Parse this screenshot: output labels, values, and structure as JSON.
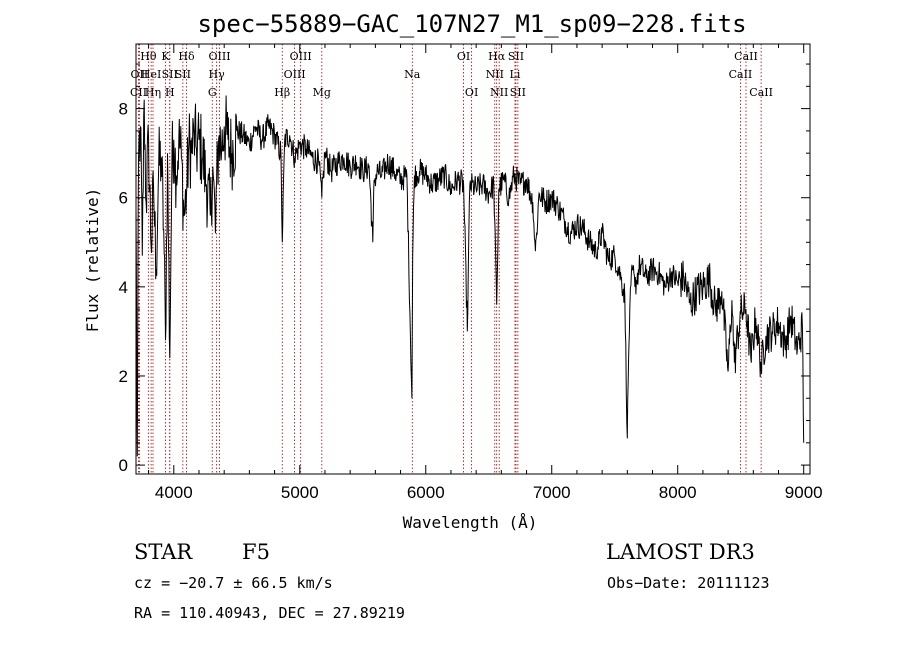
{
  "chart_data": {
    "type": "line",
    "title": "spec−55889−GAC_107N27_M1_sp09−228.fits",
    "xlabel": "Wavelength (Å)",
    "ylabel": "Flux (relative)",
    "xlim": [
      3700,
      9050
    ],
    "ylim": [
      -0.2,
      9.45
    ],
    "xticks": [
      4000,
      5000,
      6000,
      7000,
      8000,
      9000
    ],
    "yticks": [
      0,
      2,
      4,
      6,
      8
    ],
    "series": [
      {
        "name": "flux",
        "x": [
          3700,
          3710,
          3720,
          3735,
          3750,
          3765,
          3780,
          3800,
          3820,
          3840,
          3860,
          3880,
          3900,
          3920,
          3934,
          3950,
          3968,
          3985,
          4000,
          4020,
          4040,
          4060,
          4080,
          4101,
          4120,
          4140,
          4160,
          4180,
          4200,
          4230,
          4260,
          4290,
          4310,
          4330,
          4340,
          4360,
          4380,
          4400,
          4430,
          4460,
          4500,
          4550,
          4600,
          4650,
          4700,
          4750,
          4800,
          4850,
          4861,
          4880,
          4920,
          4960,
          5000,
          5050,
          5100,
          5150,
          5175,
          5200,
          5250,
          5300,
          5350,
          5400,
          5450,
          5500,
          5550,
          5580,
          5590,
          5620,
          5650,
          5700,
          5750,
          5800,
          5850,
          5890,
          5896,
          5910,
          5950,
          6000,
          6050,
          6100,
          6150,
          6200,
          6250,
          6300,
          6330,
          6350,
          6400,
          6450,
          6500,
          6540,
          6563,
          6580,
          6620,
          6660,
          6700,
          6750,
          6800,
          6850,
          6870,
          6880,
          6900,
          6950,
          7000,
          7050,
          7100,
          7150,
          7200,
          7250,
          7300,
          7350,
          7400,
          7450,
          7500,
          7550,
          7580,
          7600,
          7610,
          7620,
          7640,
          7660,
          7700,
          7750,
          7800,
          7850,
          7900,
          7950,
          8000,
          8050,
          8100,
          8150,
          8200,
          8250,
          8300,
          8350,
          8400,
          8430,
          8450,
          8500,
          8542,
          8580,
          8620,
          8662,
          8700,
          8750,
          8800,
          8850,
          8900,
          8950,
          8990,
          9000
        ],
        "values": [
          5.8,
          0.2,
          6.8,
          7.6,
          4.7,
          8.2,
          5.9,
          7.3,
          4.9,
          6.2,
          4.4,
          6.7,
          6.9,
          5.3,
          2.8,
          7.0,
          2.4,
          6.8,
          7.3,
          6.5,
          7.3,
          6.9,
          5.6,
          6.1,
          7.2,
          7.0,
          7.4,
          7.1,
          7.3,
          6.9,
          6.3,
          5.6,
          6.7,
          5.2,
          6.3,
          7.4,
          7.1,
          7.6,
          7.3,
          7.0,
          7.5,
          7.4,
          7.2,
          7.6,
          7.3,
          7.6,
          7.4,
          7.0,
          5.0,
          7.3,
          7.4,
          6.9,
          7.2,
          7.1,
          6.9,
          6.8,
          6.0,
          7.0,
          6.6,
          6.8,
          6.9,
          6.7,
          6.8,
          6.6,
          6.7,
          5.0,
          6.4,
          6.6,
          6.5,
          6.8,
          6.6,
          6.4,
          6.5,
          1.5,
          4.7,
          6.5,
          6.6,
          6.5,
          6.3,
          6.4,
          6.5,
          6.2,
          6.4,
          6.3,
          3.0,
          6.3,
          6.2,
          6.3,
          6.1,
          6.3,
          3.6,
          6.2,
          6.4,
          6.0,
          6.5,
          6.3,
          6.4,
          5.9,
          4.8,
          5.2,
          6.1,
          5.9,
          6.0,
          5.8,
          5.5,
          5.2,
          5.4,
          5.3,
          5.0,
          4.8,
          5.2,
          4.6,
          4.7,
          4.2,
          3.8,
          0.6,
          2.4,
          3.5,
          4.4,
          4.0,
          4.5,
          4.2,
          4.4,
          4.3,
          4.0,
          4.3,
          4.1,
          4.2,
          3.6,
          3.9,
          4.0,
          4.2,
          3.5,
          3.9,
          2.1,
          3.7,
          2.3,
          3.4,
          3.5,
          2.4,
          3.3,
          2.2,
          2.9,
          3.0,
          3.2,
          2.7,
          3.3,
          2.6,
          3.1,
          0.5
        ]
      }
    ],
    "lines": [
      {
        "label": "Hθ",
        "wl": 3798,
        "row": 1
      },
      {
        "label": "OII",
        "wl": 3727,
        "row": 2
      },
      {
        "label": "CII",
        "wl": 3720,
        "row": 3
      },
      {
        "label": "HeI",
        "wl": 3820,
        "row": 2
      },
      {
        "label": "Hη",
        "wl": 3835,
        "row": 3
      },
      {
        "label": "K",
        "wl": 3934,
        "row": 1
      },
      {
        "label": "SII",
        "wl": 3968,
        "row": 2
      },
      {
        "label": "H",
        "wl": 3968,
        "row": 3
      },
      {
        "label": "Hδ",
        "wl": 4101,
        "row": 1
      },
      {
        "label": "SII",
        "wl": 4072,
        "row": 2
      },
      {
        "label": "OIII",
        "wl": 4363,
        "row": 1
      },
      {
        "label": "Hγ",
        "wl": 4340,
        "row": 2
      },
      {
        "label": "G",
        "wl": 4305,
        "row": 3
      },
      {
        "label": "Hβ",
        "wl": 4861,
        "row": 3
      },
      {
        "label": "OIII",
        "wl": 5007,
        "row": 1
      },
      {
        "label": "OIII",
        "wl": 4959,
        "row": 2
      },
      {
        "label": "Mg",
        "wl": 5175,
        "row": 3
      },
      {
        "label": "Na",
        "wl": 5893,
        "row": 2
      },
      {
        "label": "OI",
        "wl": 6300,
        "row": 1
      },
      {
        "label": "OI",
        "wl": 6364,
        "row": 3
      },
      {
        "label": "Hα",
        "wl": 6563,
        "row": 1
      },
      {
        "label": "NII",
        "wl": 6548,
        "row": 2
      },
      {
        "label": "NII",
        "wl": 6583,
        "row": 3
      },
      {
        "label": "SII",
        "wl": 6716,
        "row": 1
      },
      {
        "label": "Li",
        "wl": 6708,
        "row": 2
      },
      {
        "label": "SII",
        "wl": 6731,
        "row": 3
      },
      {
        "label": "CaII",
        "wl": 8542,
        "row": 1
      },
      {
        "label": "CaII",
        "wl": 8498,
        "row": 2
      },
      {
        "label": "CaII",
        "wl": 8662,
        "row": 3
      }
    ]
  },
  "info": {
    "class_label": "STAR",
    "subclass": "F5",
    "survey": "LAMOST DR3",
    "cz": "cz = −20.7 ± 66.5 km/s",
    "obs_date": "Obs−Date: 20111123",
    "coords": "RA = 110.40943, DEC =  27.89219"
  }
}
